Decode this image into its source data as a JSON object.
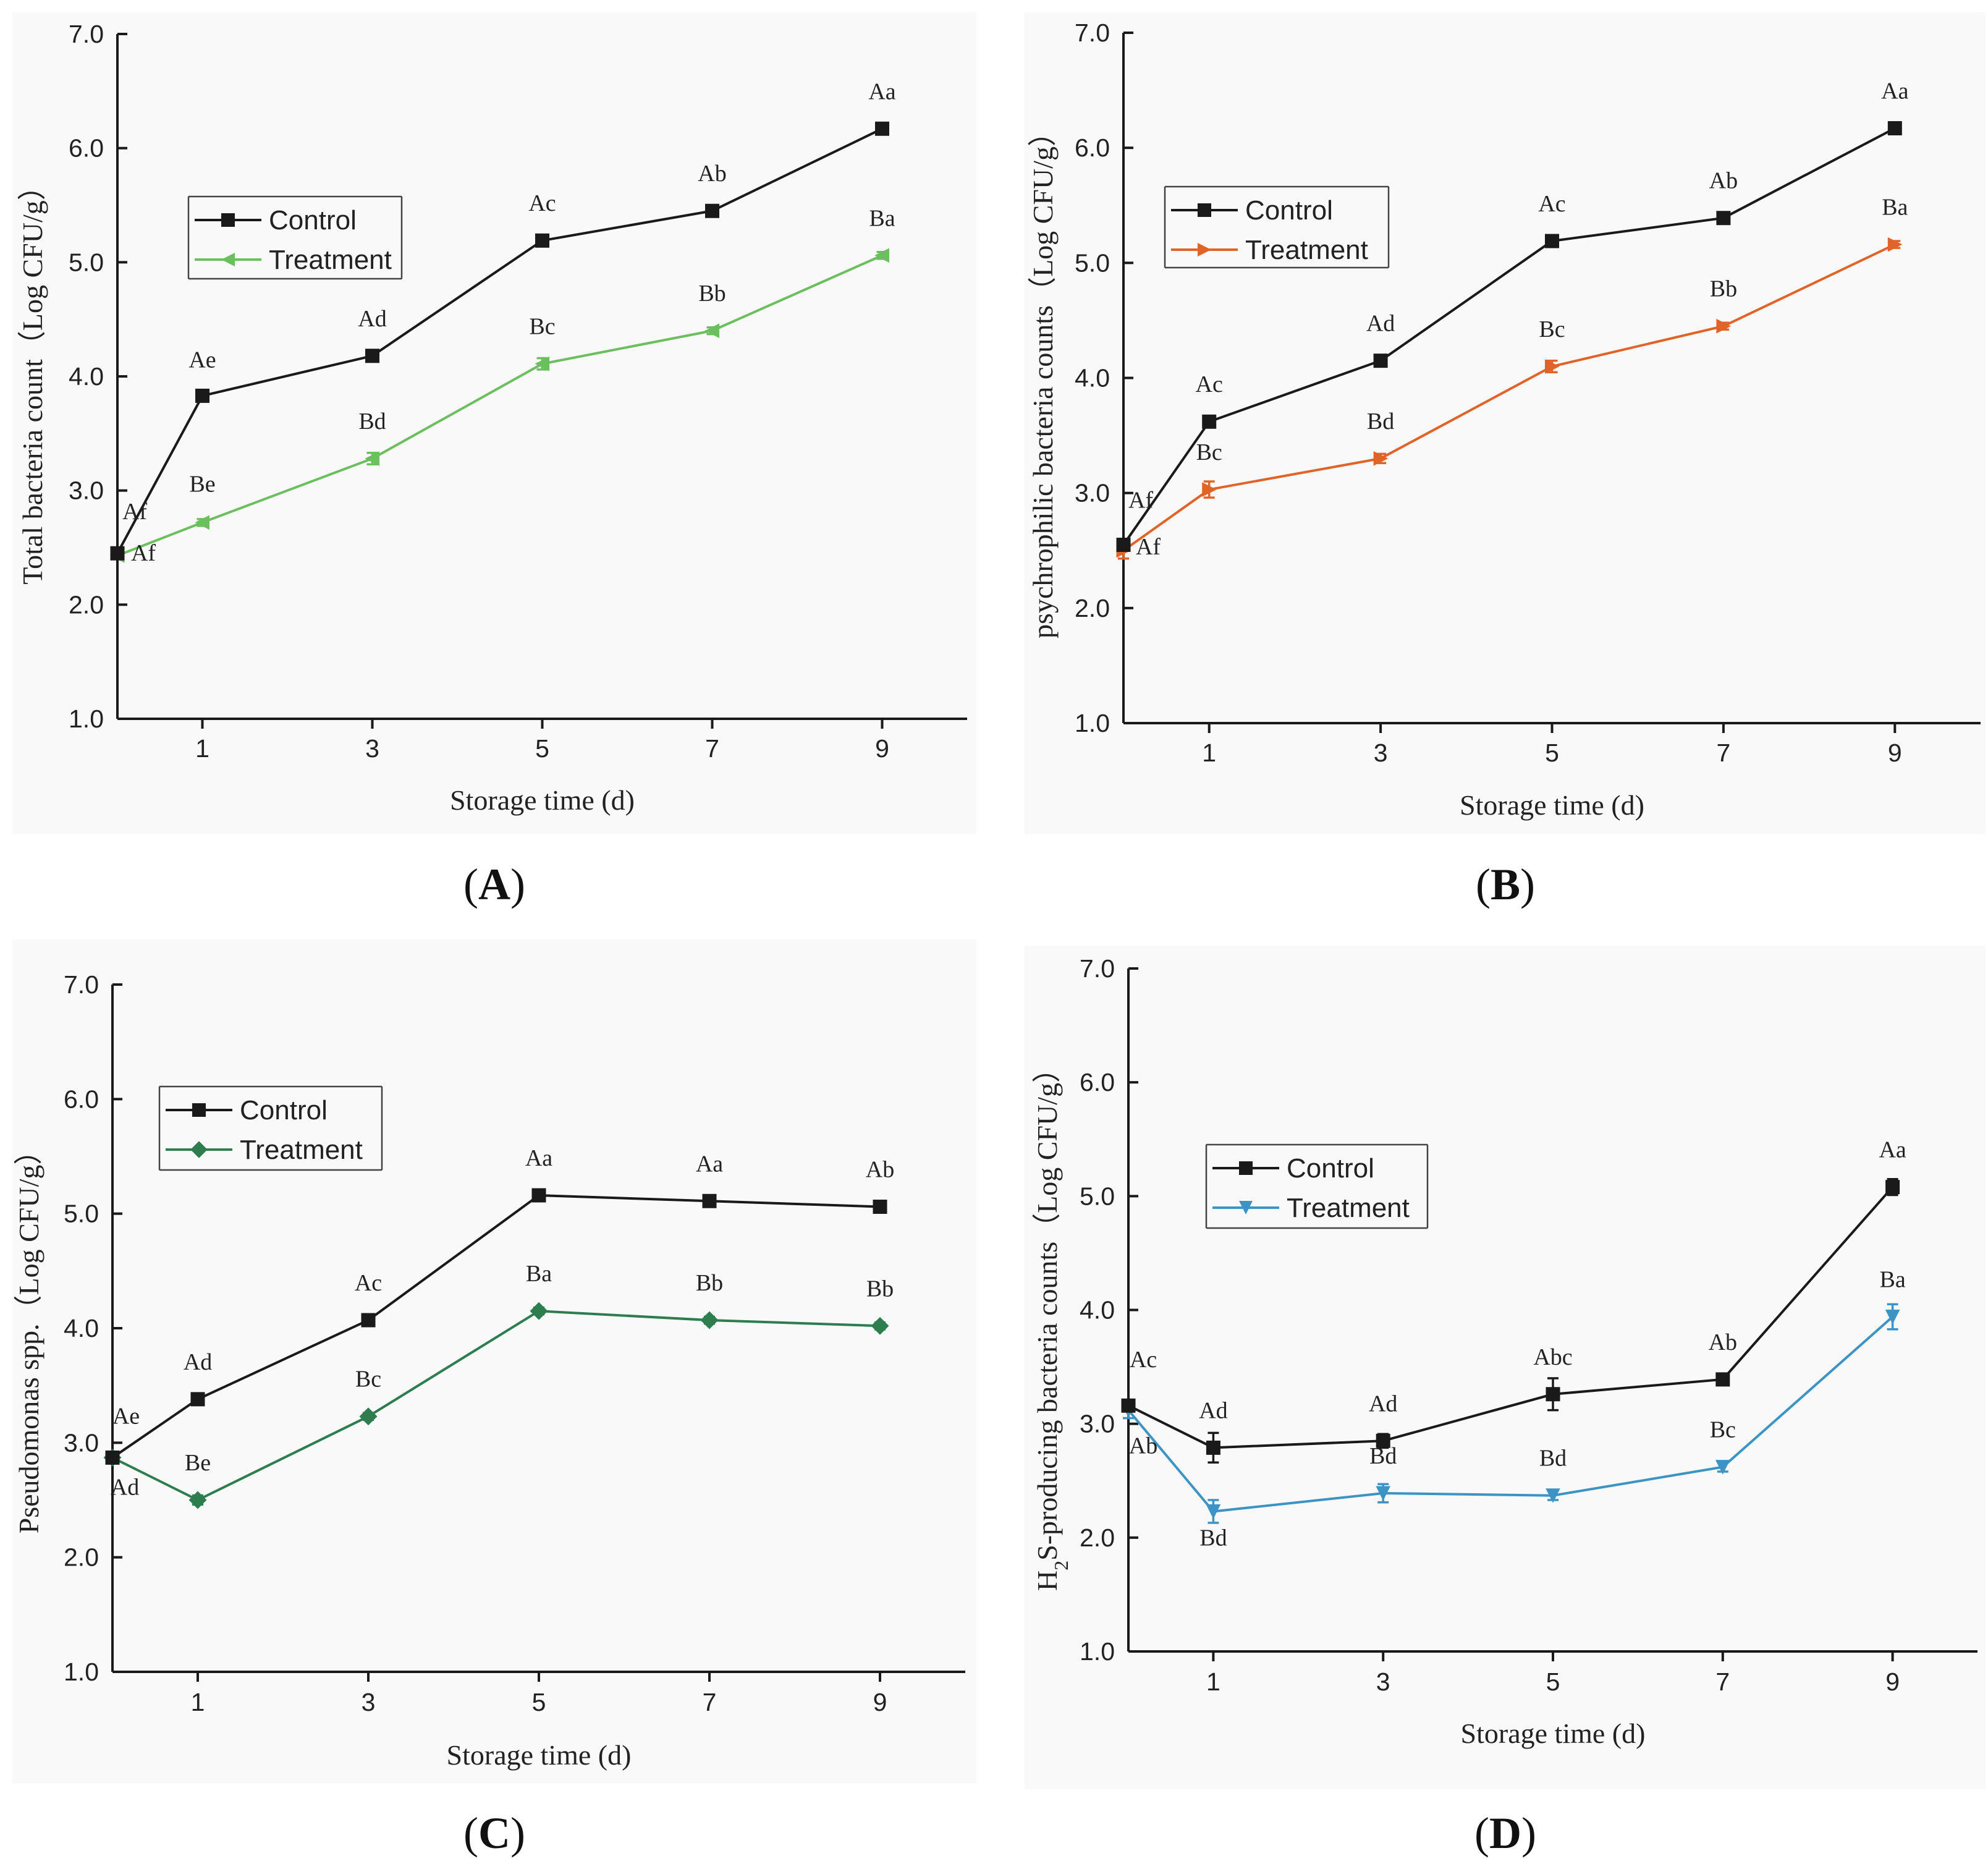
{
  "figure": {
    "panel_labels": [
      {
        "open": "(",
        "letter": "A",
        "close": ")"
      },
      {
        "open": "(",
        "letter": "B",
        "close": ")"
      },
      {
        "open": "(",
        "letter": "C",
        "close": ")"
      },
      {
        "open": "(",
        "letter": "D",
        "close": ")"
      }
    ]
  },
  "chart_data": [
    {
      "type": "line",
      "panel": "A",
      "xlabel": "Storage time (d)",
      "ylabel": "Total bacteria count（Log CFU/g）",
      "x": [
        0,
        1,
        3,
        5,
        7,
        9
      ],
      "x_tick_labels": [
        "1",
        "3",
        "5",
        "7",
        "9"
      ],
      "x_tick_values": [
        1,
        3,
        5,
        7,
        9
      ],
      "xlim": [
        0,
        10
      ],
      "ylim": [
        1.0,
        7.0
      ],
      "y_ticks": [
        "1.0",
        "2.0",
        "3.0",
        "4.0",
        "5.0",
        "6.0",
        "7.0"
      ],
      "grid": false,
      "legend_position": "upper-left",
      "series": [
        {
          "name": "Control",
          "color": "#1a1a1a",
          "marker": "square",
          "values": [
            2.45,
            3.83,
            4.18,
            5.19,
            5.45,
            6.17
          ],
          "errors": [
            0.03,
            0.03,
            0.04,
            0.03,
            0.03,
            0.03
          ],
          "labels": [
            "Af",
            "Ae",
            "Ad",
            "Ac",
            "Ab",
            "Aa"
          ]
        },
        {
          "name": "Treatment",
          "color": "#6cbf5f",
          "marker": "triangle-left",
          "values": [
            2.43,
            2.72,
            3.28,
            4.11,
            4.4,
            5.06
          ],
          "errors": [
            0.03,
            0.03,
            0.05,
            0.05,
            0.03,
            0.03
          ],
          "labels": [
            "Af",
            "Be",
            "Bd",
            "Bc",
            "Bb",
            "Ba"
          ]
        }
      ]
    },
    {
      "type": "line",
      "panel": "B",
      "xlabel": "Storage time (d)",
      "ylabel": "psychrophilic bacteria counts（Log CFU/g）",
      "x": [
        0,
        1,
        3,
        5,
        7,
        9
      ],
      "x_tick_labels": [
        "1",
        "3",
        "5",
        "7",
        "9"
      ],
      "x_tick_values": [
        1,
        3,
        5,
        7,
        9
      ],
      "xlim": [
        0,
        10
      ],
      "ylim": [
        1.0,
        7.0
      ],
      "y_ticks": [
        "1.0",
        "2.0",
        "3.0",
        "4.0",
        "5.0",
        "6.0",
        "7.0"
      ],
      "grid": false,
      "legend_position": "upper-left",
      "series": [
        {
          "name": "Control",
          "color": "#1a1a1a",
          "marker": "square",
          "values": [
            2.55,
            3.62,
            4.15,
            5.19,
            5.39,
            6.17
          ],
          "errors": [
            0.04,
            0.03,
            0.03,
            0.03,
            0.03,
            0.03
          ],
          "labels": [
            "Af",
            "Ac",
            "Ad",
            "Ac",
            "Ab",
            "Aa"
          ]
        },
        {
          "name": "Treatment",
          "color": "#e0642a",
          "marker": "triangle-right",
          "values": [
            2.5,
            3.03,
            3.3,
            4.1,
            4.45,
            5.16
          ],
          "errors": [
            0.07,
            0.07,
            0.04,
            0.05,
            0.03,
            0.03
          ],
          "labels": [
            "Af",
            "Bc",
            "Bd",
            "Bc",
            "Bb",
            "Ba"
          ]
        }
      ]
    },
    {
      "type": "line",
      "panel": "C",
      "xlabel": "Storage time (d)",
      "ylabel": "Pseudomonas spp.（Log CFU/g）",
      "x": [
        0,
        1,
        3,
        5,
        7,
        9
      ],
      "x_tick_labels": [
        "1",
        "3",
        "5",
        "7",
        "9"
      ],
      "x_tick_values": [
        1,
        3,
        5,
        7,
        9
      ],
      "xlim": [
        0,
        10
      ],
      "ylim": [
        1.0,
        7.0
      ],
      "y_ticks": [
        "1.0",
        "2.0",
        "3.0",
        "4.0",
        "5.0",
        "6.0",
        "7.0"
      ],
      "grid": false,
      "legend_position": "upper-left",
      "series": [
        {
          "name": "Control",
          "color": "#1a1a1a",
          "marker": "square",
          "values": [
            2.87,
            3.38,
            4.07,
            5.16,
            5.11,
            5.06
          ],
          "errors": [
            0.03,
            0.03,
            0.05,
            0.03,
            0.03,
            0.03
          ],
          "labels": [
            "Ae",
            "Ad",
            "Ac",
            "Aa",
            "Aa",
            "Ab"
          ]
        },
        {
          "name": "Treatment",
          "color": "#2e7d4f",
          "marker": "diamond",
          "values": [
            2.87,
            2.5,
            3.23,
            4.15,
            4.07,
            4.02
          ],
          "errors": [
            0.03,
            0.04,
            0.03,
            0.03,
            0.03,
            0.03
          ],
          "labels": [
            "Ad",
            "Be",
            "Bc",
            "Ba",
            "Bb",
            "Bb"
          ]
        }
      ]
    },
    {
      "type": "line",
      "panel": "D",
      "xlabel": "Storage time (d)",
      "ylabel_main": "S-producing bacteria counts（Log CFU/g）",
      "ylabel_prefix": "H",
      "ylabel_subscript": "2",
      "x": [
        0,
        1,
        3,
        5,
        7,
        9
      ],
      "x_tick_labels": [
        "1",
        "3",
        "5",
        "7",
        "9"
      ],
      "x_tick_values": [
        1,
        3,
        5,
        7,
        9
      ],
      "xlim": [
        0,
        10
      ],
      "ylim": [
        1.0,
        7.0
      ],
      "y_ticks": [
        "1.0",
        "2.0",
        "3.0",
        "4.0",
        "5.0",
        "6.0",
        "7.0"
      ],
      "grid": false,
      "legend_position": "upper-left",
      "series": [
        {
          "name": "Control",
          "color": "#1a1a1a",
          "marker": "square",
          "values": [
            3.16,
            2.79,
            2.85,
            3.26,
            3.39,
            5.08
          ],
          "errors": [
            0.05,
            0.13,
            0.06,
            0.14,
            0.03,
            0.07
          ],
          "labels": [
            "Ac",
            "Ad",
            "Ad",
            "Abc",
            "Ab",
            "Aa"
          ]
        },
        {
          "name": "Treatment",
          "color": "#3d94c4",
          "marker": "triangle-down",
          "values": [
            3.12,
            2.23,
            2.39,
            2.37,
            2.62,
            3.94
          ],
          "errors": [
            0.07,
            0.1,
            0.08,
            0.04,
            0.04,
            0.11
          ],
          "labels": [
            "Ab",
            "Bd",
            "Bd",
            "Bd",
            "Bc",
            "Ba"
          ]
        }
      ]
    }
  ]
}
